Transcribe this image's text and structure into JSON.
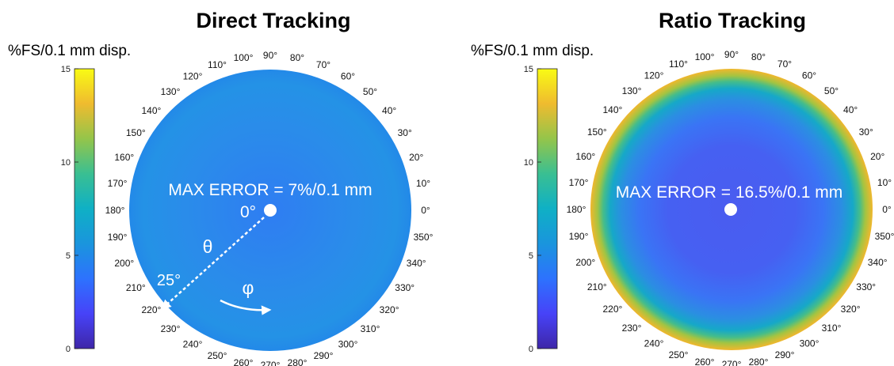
{
  "chart_data": [
    {
      "type": "heatmap",
      "projection": "polar",
      "title": "Direct Tracking",
      "colorbar": {
        "label": "%FS/0.1 mm disp.",
        "range": [
          0,
          15
        ],
        "ticks": [
          "0",
          "5",
          "10",
          "15"
        ],
        "colormap": "parula"
      },
      "angle_ticks": [
        "0°",
        "10°",
        "20°",
        "30°",
        "40°",
        "50°",
        "60°",
        "70°",
        "80°",
        "90°",
        "100°",
        "110°",
        "120°",
        "130°",
        "140°",
        "150°",
        "160°",
        "170°",
        "180°",
        "190°",
        "200°",
        "210°",
        "220°",
        "230°",
        "240°",
        "250°",
        "260°",
        "270°",
        "280°",
        "290°",
        "300°",
        "310°",
        "320°",
        "330°",
        "340°",
        "350°"
      ],
      "radial_range_deg": [
        0,
        25
      ],
      "center_value_approx": 5.5,
      "edge_value_approx": 6.5,
      "annotation": "MAX ERROR = 7%/0.1 mm",
      "theta_labels": {
        "center": "0°",
        "edge": "25°",
        "theta": "θ",
        "phi": "φ"
      }
    },
    {
      "type": "heatmap",
      "projection": "polar",
      "title": "Ratio Tracking",
      "colorbar": {
        "label": "%FS/0.1 mm disp.",
        "range": [
          0,
          15
        ],
        "ticks": [
          "0",
          "5",
          "10",
          "15"
        ],
        "colormap": "parula"
      },
      "angle_ticks": [
        "0°",
        "10°",
        "20°",
        "30°",
        "40°",
        "50°",
        "60°",
        "70°",
        "80°",
        "90°",
        "100°",
        "110°",
        "120°",
        "130°",
        "140°",
        "150°",
        "160°",
        "170°",
        "180°",
        "190°",
        "200°",
        "210°",
        "220°",
        "230°",
        "240°",
        "250°",
        "260°",
        "270°",
        "280°",
        "290°",
        "300°",
        "310°",
        "320°",
        "330°",
        "340°",
        "350°"
      ],
      "radial_range_deg": [
        0,
        25
      ],
      "center_value_approx": 4,
      "edge_value_approx": 13,
      "annotation": "MAX ERROR = 16.5%/0.1 mm"
    }
  ]
}
